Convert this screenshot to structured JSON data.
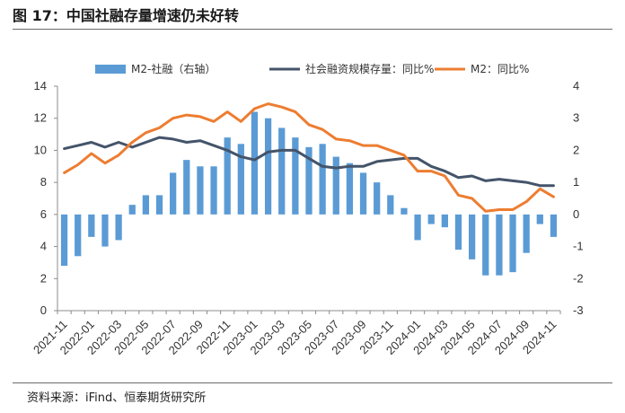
{
  "title": "图 17：中国社融存量增速仍未好转",
  "source": "资料来源：iFind、恒泰期货研究所",
  "chart_data": {
    "type": "bar+line",
    "categories": [
      "2021-11",
      "2021-12",
      "2022-01",
      "2022-02",
      "2022-03",
      "2022-04",
      "2022-05",
      "2022-06",
      "2022-07",
      "2022-08",
      "2022-09",
      "2022-10",
      "2022-11",
      "2022-12",
      "2023-01",
      "2023-02",
      "2023-03",
      "2023-04",
      "2023-05",
      "2023-06",
      "2023-07",
      "2023-08",
      "2023-09",
      "2023-10",
      "2023-11",
      "2023-12",
      "2024-01",
      "2024-02",
      "2024-03",
      "2024-04",
      "2024-05",
      "2024-06",
      "2024-07",
      "2024-08",
      "2024-09",
      "2024-10",
      "2024-11"
    ],
    "xtick_labels": [
      "2021-11",
      "2022-01",
      "2022-03",
      "2022-05",
      "2022-07",
      "2022-09",
      "2022-11",
      "2023-01",
      "2023-03",
      "2023-05",
      "2023-07",
      "2023-09",
      "2023-11",
      "2024-01",
      "2024-03",
      "2024-05",
      "2024-07",
      "2024-09",
      "2024-11"
    ],
    "left_axis": {
      "ylim": [
        0,
        14
      ],
      "ticks": [
        "0",
        "2",
        "4",
        "6",
        "8",
        "10",
        "12",
        "14"
      ]
    },
    "right_axis": {
      "ylim": [
        -3,
        4
      ],
      "ticks": [
        "-3",
        "-2",
        "-1",
        "0",
        "1",
        "2",
        "3",
        "4"
      ]
    },
    "series": [
      {
        "name": "M2-社融（右轴）",
        "type": "bar",
        "axis": "right",
        "color": "#5B9BD5",
        "values": [
          -1.6,
          -1.3,
          -0.7,
          -1.0,
          -0.8,
          0.3,
          0.6,
          0.6,
          1.3,
          1.7,
          1.5,
          1.5,
          2.4,
          2.2,
          3.2,
          3.0,
          2.7,
          2.4,
          2.1,
          2.2,
          1.8,
          1.6,
          1.3,
          1.0,
          0.6,
          0.2,
          -0.8,
          -0.3,
          -0.4,
          -1.1,
          -1.4,
          -1.9,
          -1.9,
          -1.8,
          -1.2,
          -0.3,
          -0.7
        ]
      },
      {
        "name": "社会融资规模存量：同比%",
        "type": "line",
        "axis": "left",
        "color": "#44546A",
        "values": [
          10.1,
          10.3,
          10.5,
          10.2,
          10.5,
          10.2,
          10.5,
          10.8,
          10.7,
          10.5,
          10.6,
          10.3,
          10.0,
          9.6,
          9.4,
          9.9,
          10.0,
          10.0,
          9.5,
          9.0,
          8.9,
          9.0,
          9.0,
          9.3,
          9.4,
          9.5,
          9.5,
          9.0,
          8.7,
          8.3,
          8.4,
          8.1,
          8.2,
          8.1,
          8.0,
          7.8,
          7.8
        ]
      },
      {
        "name": "M2：同比%",
        "type": "line",
        "axis": "right",
        "color": "#ED7D31",
        "values": [
          1.3,
          1.55,
          1.9,
          1.6,
          1.85,
          2.25,
          2.55,
          2.7,
          3.0,
          3.1,
          3.05,
          2.9,
          3.2,
          2.9,
          3.3,
          3.45,
          3.35,
          3.2,
          2.8,
          2.65,
          2.35,
          2.3,
          2.15,
          2.15,
          2.0,
          1.85,
          1.35,
          1.35,
          1.2,
          0.6,
          0.5,
          0.1,
          0.15,
          0.15,
          0.4,
          0.8,
          0.55
        ]
      }
    ],
    "legend_position": "top"
  }
}
